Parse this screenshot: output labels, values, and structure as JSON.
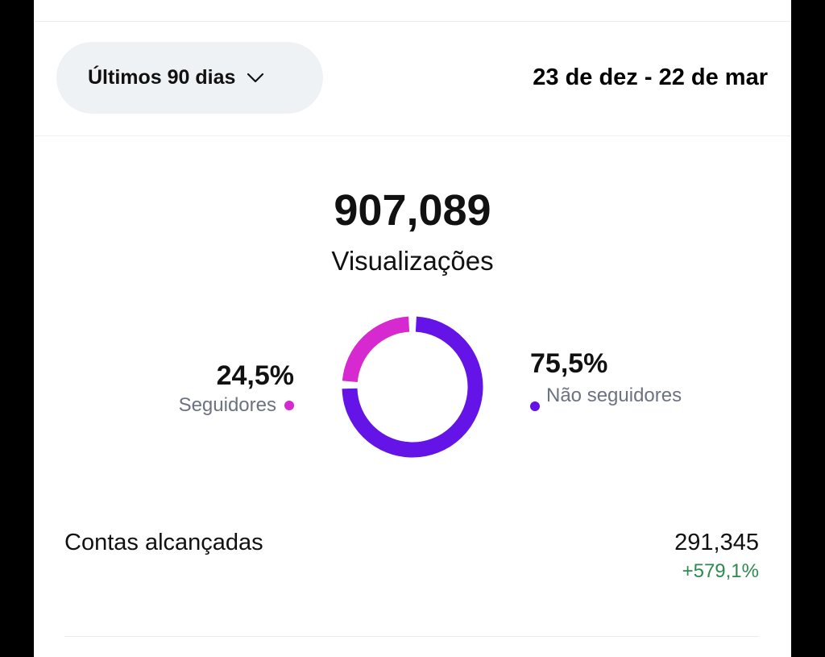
{
  "filter": {
    "period_label": "Últimos 90 dias",
    "date_range": "23 de dez - 22 de mar"
  },
  "summary": {
    "total": "907,089",
    "label": "Visualizações"
  },
  "breakdown": {
    "followers": {
      "percent_text": "24,5%",
      "label": "Seguidores",
      "share": 0.245,
      "color": "#d62ad0"
    },
    "non_followers": {
      "percent_text": "75,5%",
      "label": "Não seguidores",
      "share": 0.755,
      "color": "#6414e6"
    }
  },
  "reach": {
    "label": "Contas alcançadas",
    "value": "291,345",
    "change": "+579,1%",
    "change_color": "#2e8b4e"
  },
  "icons": {
    "period_dropdown": "chevron-down-icon"
  },
  "colors": {
    "background": "#ffffff",
    "pill": "#eff2f4"
  }
}
